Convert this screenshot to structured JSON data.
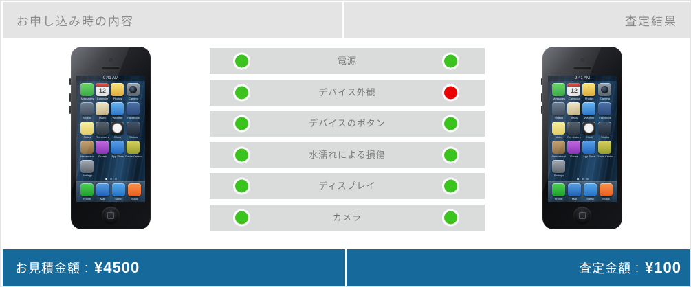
{
  "header": {
    "left_title": "お申し込み時の内容",
    "right_title": "査定結果"
  },
  "assessment": {
    "rows": [
      {
        "label": "電源",
        "before": "ok",
        "after": "ok"
      },
      {
        "label": "デバイス外観",
        "before": "ok",
        "after": "ng"
      },
      {
        "label": "デバイスのボタン",
        "before": "ok",
        "after": "ok"
      },
      {
        "label": "水濡れによる損傷",
        "before": "ok",
        "after": "ok"
      },
      {
        "label": "ディスプレイ",
        "before": "ok",
        "after": "ok"
      },
      {
        "label": "カメラ",
        "before": "ok",
        "after": "ok"
      }
    ]
  },
  "footer": {
    "left_label": "お見積金額",
    "separator": " : ",
    "left_value": "¥4500",
    "right_label": "査定金額",
    "right_value": "¥100"
  },
  "colors": {
    "bar_blue": "#16699b",
    "header_gray": "#e4e4e4",
    "row_gray": "#d9dcdb",
    "status_ok": "#3cc31f",
    "status_ng": "#ea0404",
    "dot_ring": "#ffffff"
  },
  "phone": {
    "time": "9:41 AM",
    "calendar_day": "12",
    "page_dots": 3,
    "home_apps": [
      {
        "name": "messages",
        "label": "Messages",
        "c1": "#55d04f",
        "c2": "#1f9e2c"
      },
      {
        "name": "calendar",
        "label": "Calendar",
        "c1": "#fbfbfb",
        "c2": "#dedede",
        "special": "calendar"
      },
      {
        "name": "photos",
        "label": "Photos",
        "c1": "#f8e47a",
        "c2": "#e0a93c"
      },
      {
        "name": "camera",
        "label": "Camera",
        "c1": "#9aa4b0",
        "c2": "#59636d",
        "special": "camera"
      },
      {
        "name": "videos",
        "label": "Videos",
        "c1": "#5d7086",
        "c2": "#2c3a4c"
      },
      {
        "name": "maps",
        "label": "Maps",
        "c1": "#ece4c2",
        "c2": "#c3b180"
      },
      {
        "name": "weather",
        "label": "Weather",
        "c1": "#6cb6f0",
        "c2": "#2a74c8"
      },
      {
        "name": "facebook",
        "label": "Facebook",
        "c1": "#4e71a8",
        "c2": "#2d4a7c"
      },
      {
        "name": "notes",
        "label": "Notes",
        "c1": "#f6ef9a",
        "c2": "#dfc753"
      },
      {
        "name": "reminders",
        "label": "Reminders",
        "c1": "#5a6470",
        "c2": "#2e3842"
      },
      {
        "name": "clock",
        "label": "Clock",
        "c1": "#3a3a3a",
        "c2": "#1c1c1c",
        "special": "clock"
      },
      {
        "name": "stocks",
        "label": "Stocks",
        "c1": "#46566a",
        "c2": "#212d3b"
      },
      {
        "name": "newsstand",
        "label": "Newsstand",
        "c1": "#c09a66",
        "c2": "#86653c"
      },
      {
        "name": "itunes",
        "label": "iTunes",
        "c1": "#c26ae0",
        "c2": "#8a35b8"
      },
      {
        "name": "appstore",
        "label": "App Store",
        "c1": "#59a0e8",
        "c2": "#2268c0"
      },
      {
        "name": "gamecenter",
        "label": "Game Center",
        "c1": "#d8d060",
        "c2": "#99a02c"
      },
      {
        "name": "settings",
        "label": "Settings",
        "c1": "#a4aab2",
        "c2": "#5f656c"
      }
    ],
    "dock_apps": [
      {
        "name": "phone",
        "label": "Phone",
        "c1": "#4fd153",
        "c2": "#1b9e2a"
      },
      {
        "name": "mail",
        "label": "Mail",
        "c1": "#5b9fe0",
        "c2": "#1d5fb8"
      },
      {
        "name": "safari",
        "label": "Safari",
        "c1": "#55aaec",
        "c2": "#2470c4"
      },
      {
        "name": "music",
        "label": "Music",
        "c1": "#f9944e",
        "c2": "#e85c1a"
      }
    ]
  }
}
